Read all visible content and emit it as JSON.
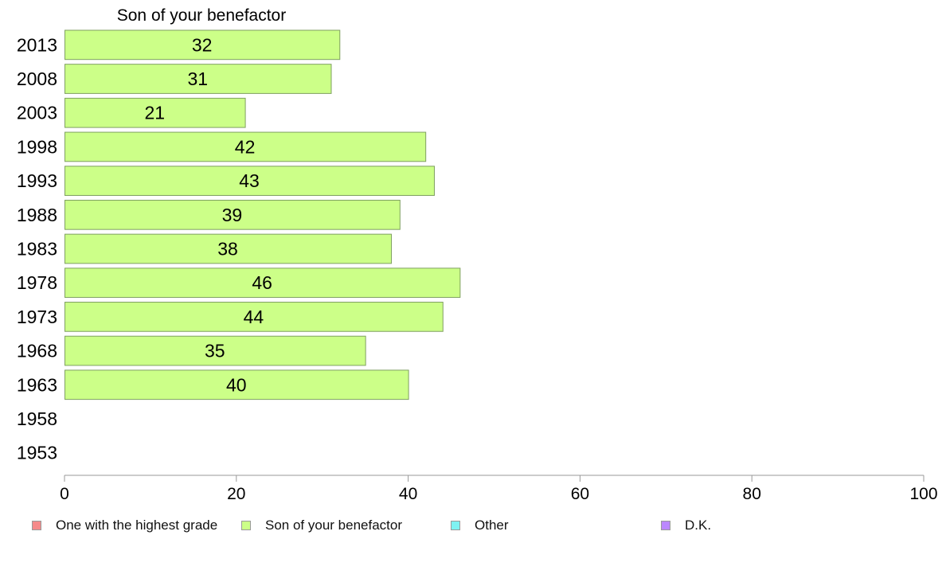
{
  "chart_data": {
    "type": "bar",
    "orientation": "horizontal",
    "title": "Son of your benefactor",
    "categories": [
      "2013",
      "2008",
      "2003",
      "1998",
      "1993",
      "1988",
      "1983",
      "1978",
      "1973",
      "1968",
      "1963",
      "1958",
      "1953"
    ],
    "series": [
      {
        "name": "Son of your benefactor",
        "values": [
          32,
          31,
          21,
          42,
          43,
          39,
          38,
          46,
          44,
          35,
          40,
          null,
          null
        ],
        "data_labels": [
          "32",
          "31",
          "21",
          "42",
          "43",
          "39",
          "38",
          "46",
          "44",
          "35",
          "40",
          "",
          ""
        ]
      }
    ],
    "xlim": [
      0,
      100
    ],
    "xticks": [
      "0",
      "20",
      "40",
      "60",
      "80",
      "100"
    ],
    "grid": false,
    "legend_position": "bottom",
    "legend": [
      {
        "label": "One with the highest grade",
        "color": "#f58a8a"
      },
      {
        "label": "Son of your benefactor",
        "color": "#ccff88"
      },
      {
        "label": "Other",
        "color": "#7ff2f2"
      },
      {
        "label": "D.K.",
        "color": "#bb88ff"
      }
    ]
  }
}
